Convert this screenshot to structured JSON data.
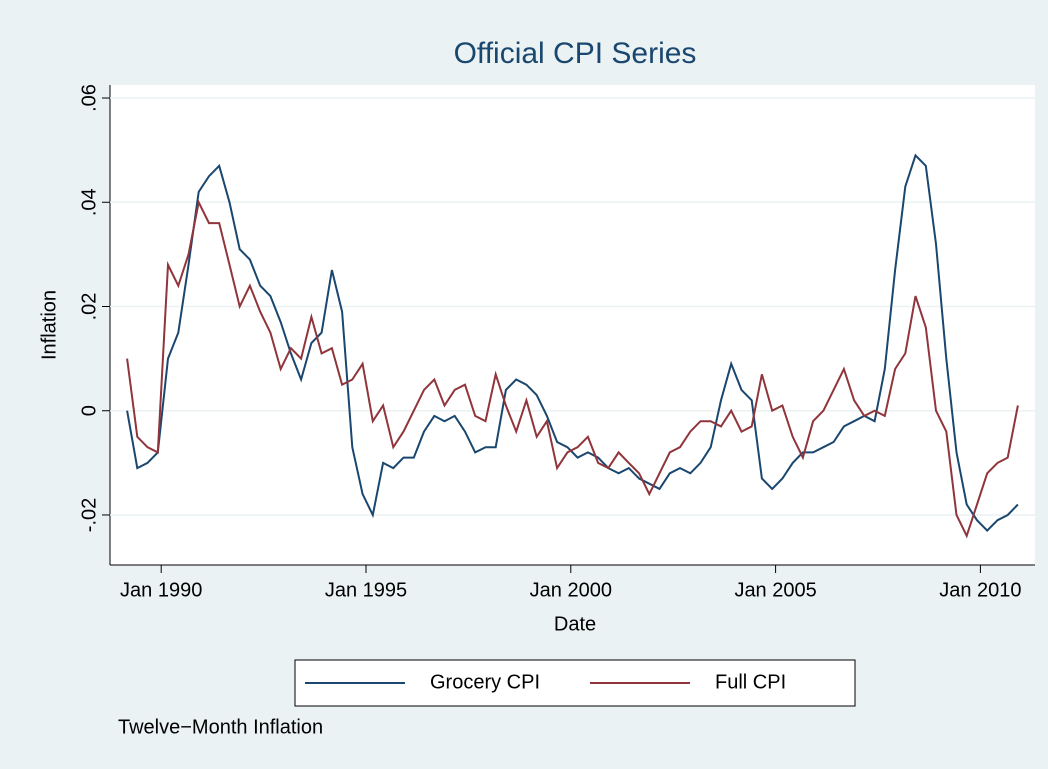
{
  "chart_data": {
    "type": "line",
    "title": "Official CPI Series",
    "x_label": "Date",
    "y_label": "Inflation",
    "note": "Twelve−Month Inflation",
    "x": [
      "1989-03",
      "1989-06",
      "1989-09",
      "1989-12",
      "1990-03",
      "1990-06",
      "1990-09",
      "1990-12",
      "1991-03",
      "1991-06",
      "1991-09",
      "1991-12",
      "1992-03",
      "1992-06",
      "1992-09",
      "1992-12",
      "1993-03",
      "1993-06",
      "1993-09",
      "1993-12",
      "1994-03",
      "1994-06",
      "1994-09",
      "1994-12",
      "1995-03",
      "1995-06",
      "1995-09",
      "1995-12",
      "1996-03",
      "1996-06",
      "1996-09",
      "1996-12",
      "1997-03",
      "1997-06",
      "1997-09",
      "1997-12",
      "1998-03",
      "1998-06",
      "1998-09",
      "1998-12",
      "1999-03",
      "1999-06",
      "1999-09",
      "1999-12",
      "2000-03",
      "2000-06",
      "2000-09",
      "2000-12",
      "2001-03",
      "2001-06",
      "2001-09",
      "2001-12",
      "2002-03",
      "2002-06",
      "2002-09",
      "2002-12",
      "2003-03",
      "2003-06",
      "2003-09",
      "2003-12",
      "2004-03",
      "2004-06",
      "2004-09",
      "2004-12",
      "2005-03",
      "2005-06",
      "2005-09",
      "2005-12",
      "2006-03",
      "2006-06",
      "2006-09",
      "2006-12",
      "2007-03",
      "2007-06",
      "2007-09",
      "2007-12",
      "2008-03",
      "2008-06",
      "2008-09",
      "2008-12",
      "2009-03",
      "2009-06",
      "2009-09",
      "2009-12",
      "2010-03",
      "2010-06",
      "2010-09",
      "2010-12"
    ],
    "series": [
      {
        "name": "Grocery CPI",
        "color": "#1a476f",
        "values": [
          0.0,
          -0.011,
          -0.01,
          -0.008,
          0.01,
          0.015,
          0.028,
          0.042,
          0.045,
          0.047,
          0.04,
          0.031,
          0.029,
          0.024,
          0.022,
          0.017,
          0.011,
          0.006,
          0.013,
          0.015,
          0.027,
          0.019,
          -0.007,
          -0.016,
          -0.02,
          -0.01,
          -0.011,
          -0.009,
          -0.009,
          -0.004,
          -0.001,
          -0.002,
          -0.001,
          -0.004,
          -0.008,
          -0.007,
          -0.007,
          0.004,
          0.006,
          0.005,
          0.003,
          -0.001,
          -0.006,
          -0.007,
          -0.009,
          -0.008,
          -0.009,
          -0.011,
          -0.012,
          -0.011,
          -0.013,
          -0.014,
          -0.015,
          -0.012,
          -0.011,
          -0.012,
          -0.01,
          -0.007,
          0.002,
          0.009,
          0.004,
          0.002,
          -0.013,
          -0.015,
          -0.013,
          -0.01,
          -0.008,
          -0.008,
          -0.007,
          -0.006,
          -0.003,
          -0.002,
          -0.001,
          -0.002,
          0.008,
          0.027,
          0.043,
          0.049,
          0.047,
          0.032,
          0.01,
          -0.008,
          -0.018,
          -0.021,
          -0.023,
          -0.021,
          -0.02,
          -0.018
        ]
      },
      {
        "name": "Full CPI",
        "color": "#90353b",
        "values": [
          0.01,
          -0.005,
          -0.007,
          -0.008,
          0.028,
          0.024,
          0.03,
          0.04,
          0.036,
          0.036,
          0.028,
          0.02,
          0.024,
          0.019,
          0.015,
          0.008,
          0.012,
          0.01,
          0.018,
          0.011,
          0.012,
          0.005,
          0.006,
          0.009,
          -0.002,
          0.001,
          -0.007,
          -0.004,
          0.0,
          0.004,
          0.006,
          0.001,
          0.004,
          0.005,
          -0.001,
          -0.002,
          0.007,
          0.001,
          -0.004,
          0.002,
          -0.005,
          -0.002,
          -0.011,
          -0.008,
          -0.007,
          -0.005,
          -0.01,
          -0.011,
          -0.008,
          -0.01,
          -0.012,
          -0.016,
          -0.012,
          -0.008,
          -0.007,
          -0.004,
          -0.002,
          -0.002,
          -0.003,
          0.0,
          -0.004,
          -0.003,
          0.007,
          0.0,
          0.001,
          -0.005,
          -0.009,
          -0.002,
          0.0,
          0.004,
          0.008,
          0.002,
          -0.001,
          0.0,
          -0.001,
          0.008,
          0.011,
          0.022,
          0.016,
          0.0,
          -0.004,
          -0.02,
          -0.024,
          -0.018,
          -0.012,
          -0.01,
          -0.009,
          0.001
        ]
      }
    ],
    "xlim": [
      "1988-10",
      "2011-05"
    ],
    "xticks": [
      {
        "value": "1990-01",
        "label": "Jan 1990"
      },
      {
        "value": "1995-01",
        "label": "Jan 1995"
      },
      {
        "value": "2000-01",
        "label": "Jan 2000"
      },
      {
        "value": "2005-01",
        "label": "Jan 2005"
      },
      {
        "value": "2010-01",
        "label": "Jan 2010"
      }
    ],
    "ylim": [
      -0.0296,
      0.0625
    ],
    "yticks": [
      {
        "value": -0.02,
        "label": "-.02"
      },
      0,
      {
        "value": 0.02,
        "label": ".02"
      },
      {
        "value": 0.04,
        "label": ".04"
      },
      {
        "value": 0.06,
        "label": ".06"
      }
    ],
    "grid": true,
    "legend": "bottom"
  }
}
